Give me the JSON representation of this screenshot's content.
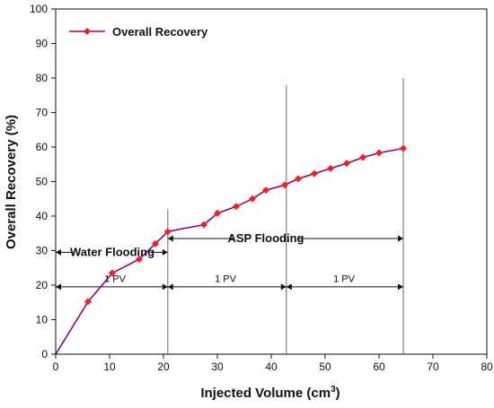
{
  "chart_data": {
    "type": "line",
    "title": "",
    "xlabel": "Injected Volume (cm",
    "xlabel_superscript": "3",
    "xlabel_suffix": ")",
    "ylabel": "Overall Recovery (%)",
    "xlim": [
      0,
      80
    ],
    "ylim": [
      0,
      100
    ],
    "x_ticks": [
      0,
      10,
      20,
      30,
      40,
      50,
      60,
      70,
      80
    ],
    "y_ticks": [
      0,
      10,
      20,
      30,
      40,
      50,
      60,
      70,
      80,
      90,
      100
    ],
    "grid": false,
    "legend_position": "top-left",
    "line_color": "#8B008B",
    "marker_color": "#FF1A1A",
    "series": [
      {
        "name": "Overall Recovery",
        "points": [
          {
            "x": 0,
            "y": 0,
            "marker": false
          },
          {
            "x": 6,
            "y": 15.2,
            "marker": true
          },
          {
            "x": 10.5,
            "y": 23.5,
            "marker": true
          },
          {
            "x": 15.5,
            "y": 27.5,
            "marker": true
          },
          {
            "x": 18.5,
            "y": 32,
            "marker": true
          },
          {
            "x": 20.8,
            "y": 35.5,
            "marker": true
          },
          {
            "x": 24,
            "y": 36.5,
            "marker": false
          },
          {
            "x": 27.5,
            "y": 37.5,
            "marker": true
          },
          {
            "x": 30,
            "y": 40.8,
            "marker": true
          },
          {
            "x": 33.5,
            "y": 42.8,
            "marker": true
          },
          {
            "x": 36.5,
            "y": 45,
            "marker": true
          },
          {
            "x": 39,
            "y": 47.5,
            "marker": true
          },
          {
            "x": 42.5,
            "y": 49,
            "marker": true
          },
          {
            "x": 45,
            "y": 50.8,
            "marker": true
          },
          {
            "x": 48,
            "y": 52.3,
            "marker": true
          },
          {
            "x": 51,
            "y": 53.8,
            "marker": true
          },
          {
            "x": 54,
            "y": 55.3,
            "marker": true
          },
          {
            "x": 57,
            "y": 57,
            "marker": true
          },
          {
            "x": 60,
            "y": 58.3,
            "marker": true
          },
          {
            "x": 64.5,
            "y": 59.6,
            "marker": true
          }
        ]
      }
    ],
    "vertical_lines": [
      {
        "x": 20.8,
        "y_top": 42
      },
      {
        "x": 42.8,
        "y_top": 78
      },
      {
        "x": 64.5,
        "y_top": 80
      }
    ],
    "annotations": [
      {
        "text": "Water Flooding",
        "x": 10.5,
        "y": 29.5,
        "bold": true
      },
      {
        "text": "ASP Flooding",
        "x": 39,
        "y": 33.5,
        "bold": true
      },
      {
        "text": "1 PV",
        "x": 11,
        "y": 22,
        "bold": false
      },
      {
        "text": "1 PV",
        "x": 31.5,
        "y": 22,
        "bold": false
      },
      {
        "text": "1 PV",
        "x": 53.5,
        "y": 22,
        "bold": false
      }
    ],
    "arrows": [
      {
        "x1": 0,
        "x2": 20.8,
        "y": 29.5,
        "label_gap": [
          3.5,
          17.5
        ]
      },
      {
        "x1": 20.8,
        "x2": 64.5,
        "y": 33.5,
        "label_gap": [
          33,
          45
        ]
      },
      {
        "x1": 0,
        "x2": 20.8,
        "y": 19.5
      },
      {
        "x1": 20.8,
        "x2": 42.8,
        "y": 19.5
      },
      {
        "x1": 42.8,
        "x2": 64.5,
        "y": 19.5
      }
    ]
  }
}
